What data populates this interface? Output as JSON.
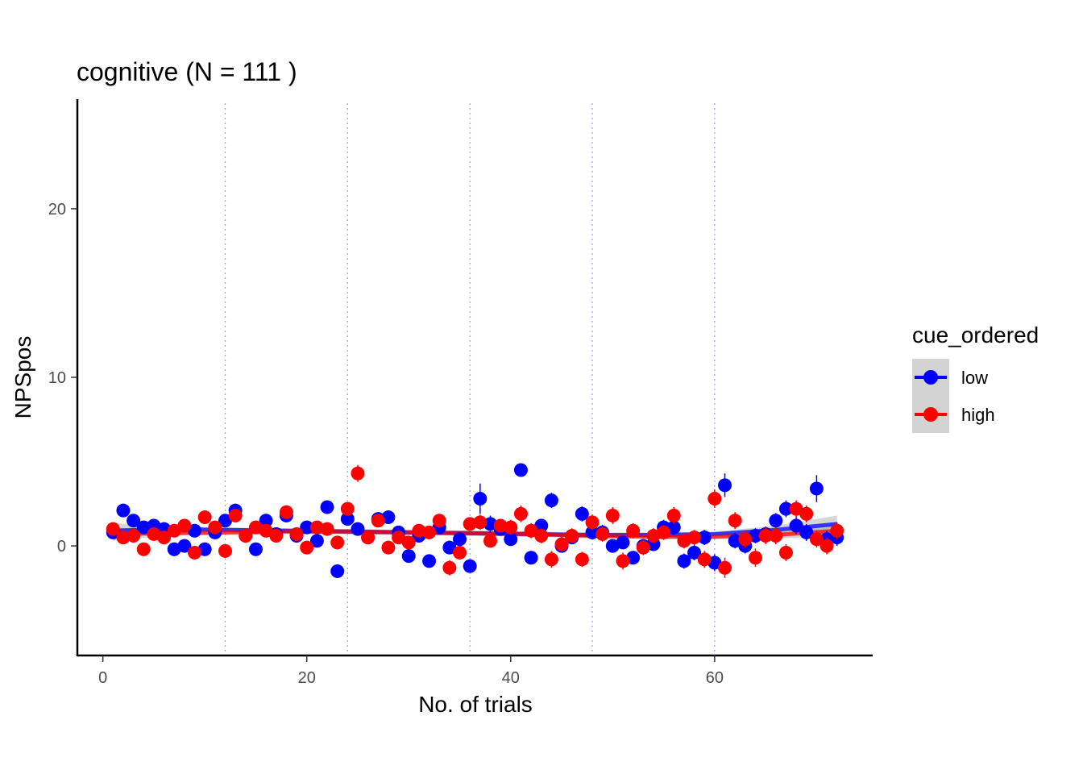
{
  "chart_data": {
    "type": "scatter",
    "title": "cognitive (N =  111 )",
    "xlabel": "No. of trials",
    "ylabel": "NPSpos",
    "xlim": [
      -2.5,
      75.5
    ],
    "ylim": [
      -6.5,
      26.5
    ],
    "x_ticks": [
      0,
      20,
      40,
      60
    ],
    "y_ticks": [
      0,
      10,
      20
    ],
    "x_tick_labels": [
      "0",
      "20",
      "40",
      "60"
    ],
    "y_tick_labels": [
      "0",
      "10",
      "20"
    ],
    "vlines": [
      12,
      24,
      36,
      48,
      60
    ],
    "grid": false,
    "legend": {
      "title": "cue_ordered",
      "placement": "right",
      "entries": [
        {
          "label": "low",
          "color": "#0000ff"
        },
        {
          "label": "high",
          "color": "#ff0000"
        }
      ]
    },
    "series": [
      {
        "name": "low",
        "color": "#0000ff",
        "points": [
          [
            1,
            0.8,
            0.3
          ],
          [
            2,
            2.1,
            0.35
          ],
          [
            3,
            1.5,
            0.3
          ],
          [
            4,
            1.1,
            0.3
          ],
          [
            5,
            1.2,
            0.3
          ],
          [
            6,
            1.0,
            0.3
          ],
          [
            7,
            -0.2,
            0.4
          ],
          [
            8,
            0.0,
            0.4
          ],
          [
            9,
            0.9,
            0.3
          ],
          [
            10,
            -0.2,
            0.4
          ],
          [
            11,
            0.8,
            0.3
          ],
          [
            12,
            1.5,
            0.3
          ],
          [
            13,
            2.1,
            0.35
          ],
          [
            14,
            0.6,
            0.4
          ],
          [
            15,
            -0.2,
            0.35
          ],
          [
            16,
            1.5,
            0.35
          ],
          [
            17,
            0.7,
            0.35
          ],
          [
            18,
            1.8,
            0.35
          ],
          [
            19,
            0.6,
            0.3
          ],
          [
            20,
            1.1,
            0.3
          ],
          [
            21,
            0.3,
            0.35
          ],
          [
            22,
            2.3,
            0.35
          ],
          [
            23,
            -1.5,
            0.3
          ],
          [
            24,
            1.6,
            0.35
          ],
          [
            25,
            1.0,
            0.35
          ],
          [
            26,
            0.5,
            0.3
          ],
          [
            27,
            1.6,
            0.35
          ],
          [
            28,
            1.7,
            0.35
          ],
          [
            29,
            0.8,
            0.3
          ],
          [
            30,
            -0.6,
            0.35
          ],
          [
            31,
            0.6,
            0.35
          ],
          [
            32,
            -0.9,
            0.3
          ],
          [
            33,
            1.1,
            0.35
          ],
          [
            34,
            -0.1,
            0.4
          ],
          [
            35,
            0.4,
            0.4
          ],
          [
            36,
            -1.2,
            0.35
          ],
          [
            37,
            2.8,
            0.9
          ],
          [
            38,
            1.3,
            0.5
          ],
          [
            39,
            1.0,
            0.4
          ],
          [
            40,
            0.4,
            0.4
          ],
          [
            41,
            4.5,
            0.35
          ],
          [
            42,
            -0.7,
            0.4
          ],
          [
            43,
            1.2,
            0.4
          ],
          [
            44,
            2.7,
            0.45
          ],
          [
            45,
            0.0,
            0.4
          ],
          [
            46,
            0.5,
            0.4
          ],
          [
            47,
            1.9,
            0.45
          ],
          [
            48,
            0.8,
            0.4
          ],
          [
            49,
            0.8,
            0.45
          ],
          [
            50,
            0.0,
            0.4
          ],
          [
            51,
            0.2,
            0.4
          ],
          [
            52,
            -0.7,
            0.4
          ],
          [
            53,
            0.0,
            0.4
          ],
          [
            54,
            0.1,
            0.4
          ],
          [
            55,
            1.1,
            0.45
          ],
          [
            56,
            1.1,
            0.45
          ],
          [
            57,
            -0.9,
            0.45
          ],
          [
            58,
            -0.4,
            0.45
          ],
          [
            59,
            0.5,
            0.45
          ],
          [
            60,
            -1.0,
            0.5
          ],
          [
            61,
            3.6,
            0.7
          ],
          [
            62,
            0.3,
            0.45
          ],
          [
            63,
            0.0,
            0.45
          ],
          [
            64,
            0.6,
            0.45
          ],
          [
            65,
            0.7,
            0.45
          ],
          [
            66,
            1.5,
            0.45
          ],
          [
            67,
            2.2,
            0.5
          ],
          [
            68,
            1.2,
            0.5
          ],
          [
            69,
            0.8,
            0.5
          ],
          [
            70,
            3.4,
            0.8
          ],
          [
            71,
            0.4,
            0.5
          ],
          [
            72,
            0.5,
            0.5
          ]
        ],
        "smooth": [
          [
            1,
            0.9
          ],
          [
            6,
            1.0
          ],
          [
            12,
            0.95
          ],
          [
            18,
            0.9
          ],
          [
            24,
            0.85
          ],
          [
            30,
            0.8
          ],
          [
            36,
            0.75
          ],
          [
            42,
            0.7
          ],
          [
            48,
            0.65
          ],
          [
            54,
            0.65
          ],
          [
            60,
            0.7
          ],
          [
            66,
            0.95
          ],
          [
            72,
            1.3
          ]
        ],
        "band": [
          0.45,
          0.15,
          0.15,
          0.15,
          0.15,
          0.15,
          0.15,
          0.15,
          0.15,
          0.15,
          0.15,
          0.25,
          0.5
        ]
      },
      {
        "name": "high",
        "color": "#ff0000",
        "points": [
          [
            1,
            1.0,
            0.3
          ],
          [
            2,
            0.5,
            0.3
          ],
          [
            3,
            0.6,
            0.3
          ],
          [
            4,
            -0.2,
            0.35
          ],
          [
            5,
            0.7,
            0.3
          ],
          [
            6,
            0.5,
            0.35
          ],
          [
            7,
            0.9,
            0.3
          ],
          [
            8,
            1.2,
            0.35
          ],
          [
            9,
            -0.4,
            0.3
          ],
          [
            10,
            1.7,
            0.35
          ],
          [
            11,
            1.1,
            0.3
          ],
          [
            12,
            -0.3,
            0.4
          ],
          [
            13,
            1.8,
            0.35
          ],
          [
            14,
            0.6,
            0.35
          ],
          [
            15,
            1.1,
            0.35
          ],
          [
            16,
            0.9,
            0.35
          ],
          [
            17,
            0.6,
            0.35
          ],
          [
            18,
            2.0,
            0.35
          ],
          [
            19,
            0.7,
            0.35
          ],
          [
            20,
            -0.1,
            0.35
          ],
          [
            21,
            1.1,
            0.35
          ],
          [
            22,
            1.0,
            0.35
          ],
          [
            23,
            0.2,
            0.4
          ],
          [
            24,
            2.2,
            0.4
          ],
          [
            25,
            4.3,
            0.5
          ],
          [
            26,
            0.5,
            0.35
          ],
          [
            27,
            1.5,
            0.35
          ],
          [
            28,
            -0.1,
            0.4
          ],
          [
            29,
            0.5,
            0.35
          ],
          [
            30,
            0.2,
            0.4
          ],
          [
            31,
            0.9,
            0.35
          ],
          [
            32,
            0.8,
            0.35
          ],
          [
            33,
            1.5,
            0.4
          ],
          [
            34,
            -1.3,
            0.45
          ],
          [
            35,
            -0.4,
            0.4
          ],
          [
            36,
            1.3,
            0.4
          ],
          [
            37,
            1.4,
            0.45
          ],
          [
            38,
            0.3,
            0.4
          ],
          [
            39,
            1.2,
            0.4
          ],
          [
            40,
            1.1,
            0.45
          ],
          [
            41,
            1.9,
            0.5
          ],
          [
            42,
            0.9,
            0.45
          ],
          [
            43,
            0.6,
            0.45
          ],
          [
            44,
            -0.8,
            0.5
          ],
          [
            45,
            0.1,
            0.45
          ],
          [
            46,
            0.6,
            0.45
          ],
          [
            47,
            -0.8,
            0.45
          ],
          [
            48,
            1.4,
            0.45
          ],
          [
            49,
            0.7,
            0.45
          ],
          [
            50,
            1.8,
            0.5
          ],
          [
            51,
            -0.9,
            0.5
          ],
          [
            52,
            0.9,
            0.45
          ],
          [
            53,
            -0.1,
            0.45
          ],
          [
            54,
            0.6,
            0.45
          ],
          [
            55,
            0.8,
            0.45
          ],
          [
            56,
            1.8,
            0.5
          ],
          [
            57,
            0.3,
            0.45
          ],
          [
            58,
            0.5,
            0.45
          ],
          [
            59,
            -0.8,
            0.5
          ],
          [
            60,
            2.8,
            0.55
          ],
          [
            61,
            -1.3,
            0.6
          ],
          [
            62,
            1.5,
            0.5
          ],
          [
            63,
            0.4,
            0.5
          ],
          [
            64,
            -0.7,
            0.55
          ],
          [
            65,
            0.6,
            0.5
          ],
          [
            66,
            0.6,
            0.5
          ],
          [
            67,
            -0.4,
            0.5
          ],
          [
            68,
            2.2,
            0.5
          ],
          [
            69,
            1.9,
            0.5
          ],
          [
            70,
            0.4,
            0.5
          ],
          [
            71,
            0.0,
            0.5
          ],
          [
            72,
            0.9,
            0.5
          ]
        ],
        "smooth": [
          [
            1,
            0.7
          ],
          [
            6,
            0.75
          ],
          [
            12,
            0.8
          ],
          [
            18,
            0.85
          ],
          [
            24,
            0.85
          ],
          [
            30,
            0.8
          ],
          [
            36,
            0.75
          ],
          [
            42,
            0.7
          ],
          [
            48,
            0.6
          ],
          [
            54,
            0.55
          ],
          [
            60,
            0.55
          ],
          [
            66,
            0.65
          ],
          [
            72,
            0.9
          ]
        ],
        "band": [
          0.4,
          0.15,
          0.15,
          0.15,
          0.15,
          0.15,
          0.15,
          0.15,
          0.15,
          0.15,
          0.15,
          0.2,
          0.4
        ]
      }
    ]
  }
}
